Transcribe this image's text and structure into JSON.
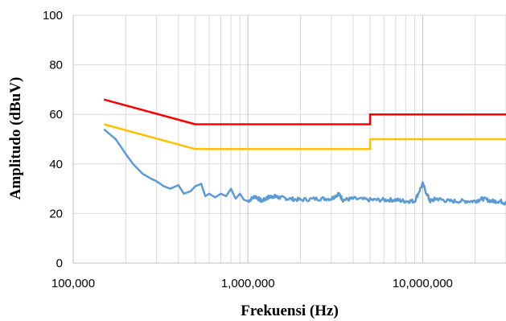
{
  "chart_data": {
    "type": "line",
    "title": "",
    "xlabel": "Frekuensi (Hz)",
    "ylabel": "Amplitudo (dBuV)",
    "x_scale": "log",
    "xlim": [
      100000,
      30000000
    ],
    "ylim": [
      0,
      100
    ],
    "grid": true,
    "legend": "none",
    "x_tick_labels": [
      "100,000",
      "1,000,000",
      "10,000,000"
    ],
    "x_tick_values": [
      100000,
      1000000,
      10000000
    ],
    "y_tick_labels": [
      "0",
      "20",
      "40",
      "60",
      "80",
      "100"
    ],
    "y_tick_values": [
      0,
      20,
      40,
      60,
      80,
      100
    ],
    "series": [
      {
        "color": "#ff0000",
        "x": [
          150000,
          500000,
          5000000,
          5000000,
          30000000
        ],
        "y": [
          66,
          56,
          56,
          60,
          60
        ]
      },
      {
        "color": "#ffc000",
        "x": [
          150000,
          500000,
          5000000,
          5000000,
          30000000
        ],
        "y": [
          56,
          46,
          46,
          50,
          50
        ]
      },
      {
        "color": "#5b9bd5",
        "x": [
          150000,
          175000,
          200000,
          220000,
          250000,
          280000,
          300000,
          330000,
          360000,
          400000,
          430000,
          470000,
          500000,
          540000,
          570000,
          600000,
          650000,
          700000,
          750000,
          800000,
          850000,
          900000,
          950000,
          1000000,
          1100000,
          1200000,
          1300000,
          1400000,
          1500000,
          1700000,
          2000000,
          2500000,
          3000000,
          3300000,
          3500000,
          4000000,
          5000000,
          6000000,
          7000000,
          8000000,
          9000000,
          10000000,
          11000000,
          12000000,
          14000000,
          17000000,
          20000000,
          22000000,
          25000000,
          28000000,
          30000000
        ],
        "y": [
          54,
          50,
          44,
          40,
          36,
          34,
          33,
          31,
          30,
          31.5,
          28,
          29,
          31,
          32,
          27,
          28,
          26.5,
          28,
          27,
          30,
          26,
          28,
          25.5,
          25,
          27,
          25,
          26.5,
          27,
          26.5,
          26,
          25.5,
          26,
          26,
          28,
          25.5,
          26,
          25.5,
          25.5,
          25.5,
          25,
          25,
          32,
          25,
          26,
          25,
          25,
          25,
          26,
          25,
          25,
          24
        ]
      }
    ]
  }
}
